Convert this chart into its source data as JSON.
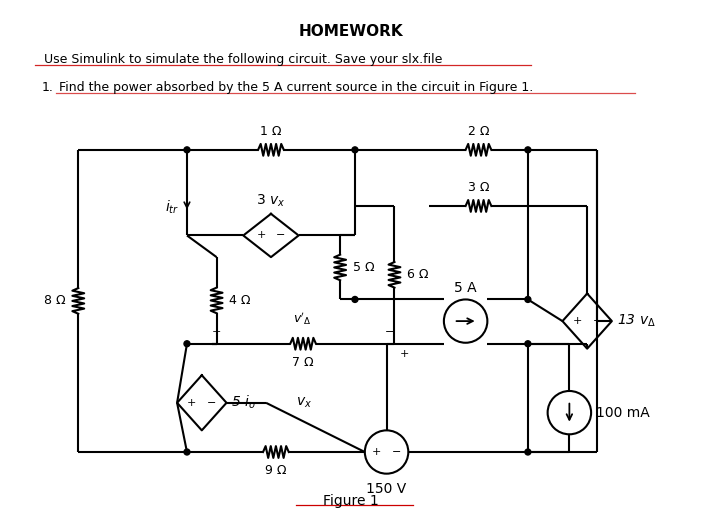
{
  "title": "HOMEWORK",
  "subtitle": "Use Simulink to simulate the following circuit. Save your slx.file",
  "item1": "Find the power absorbed by the 5 A current source in the circuit in Figure 1.",
  "figure_label": "Figure 1",
  "bg_color": "#ffffff",
  "text_color": "#000000",
  "line_color": "#000000",
  "red_underline_color": "#cc0000"
}
